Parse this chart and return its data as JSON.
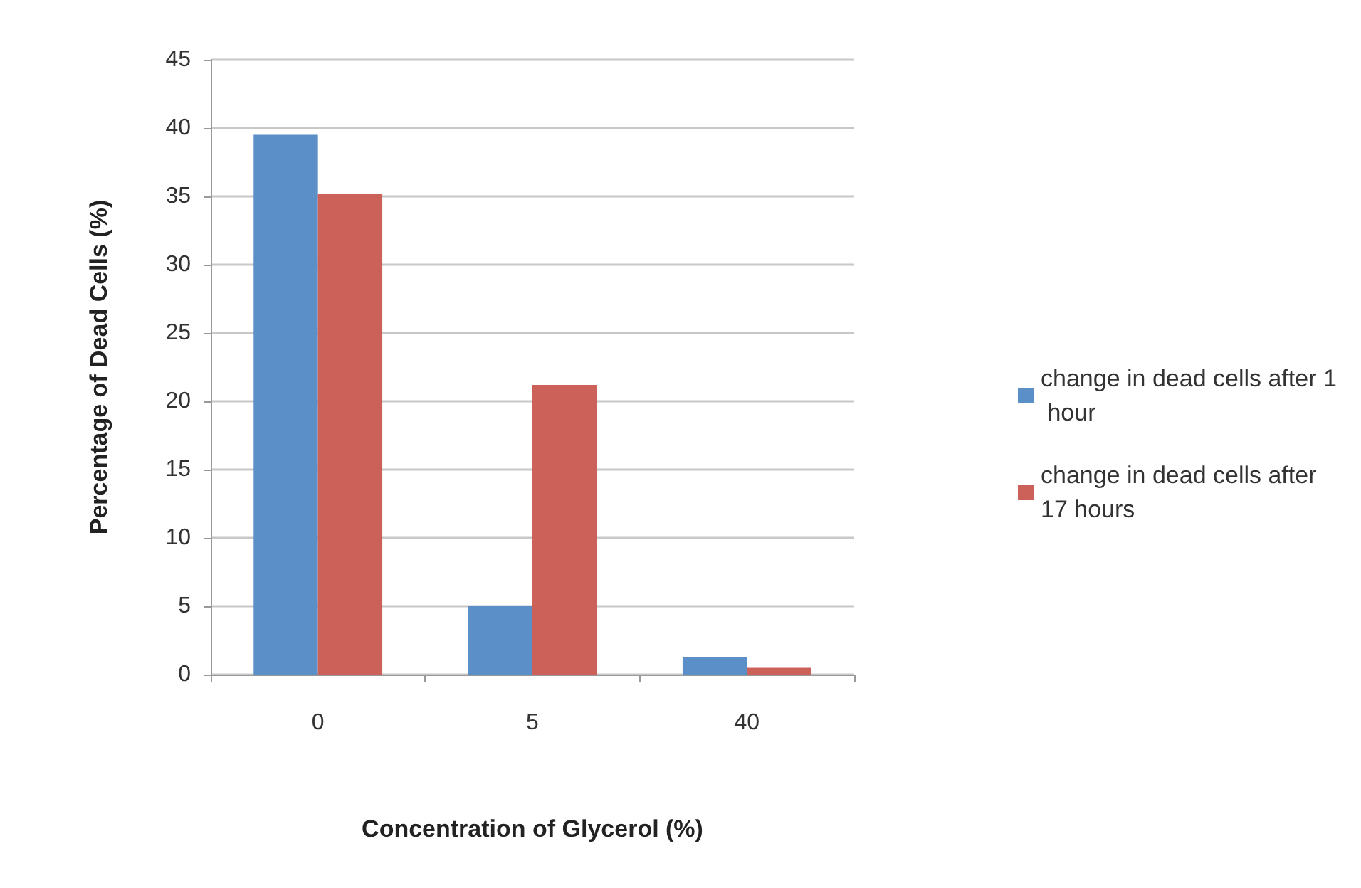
{
  "chart_data": {
    "type": "bar",
    "xlabel": "Concentration of Glycerol (%)",
    "ylabel": "Percentage of Dead Cells (%)",
    "categories": [
      "0",
      "5",
      "40"
    ],
    "series": [
      {
        "name": "change in dead cells after 1 hour",
        "color": "#5b8fc7",
        "values": [
          39.5,
          5.0,
          1.3
        ]
      },
      {
        "name": "change in dead cells after 17 hours",
        "color": "#cc6159",
        "values": [
          35.2,
          21.2,
          0.5
        ]
      }
    ],
    "ylim": [
      0,
      45
    ],
    "yticks": [
      0,
      5,
      10,
      15,
      20,
      25,
      30,
      35,
      40,
      45
    ],
    "grid": "y",
    "legend": "right"
  }
}
